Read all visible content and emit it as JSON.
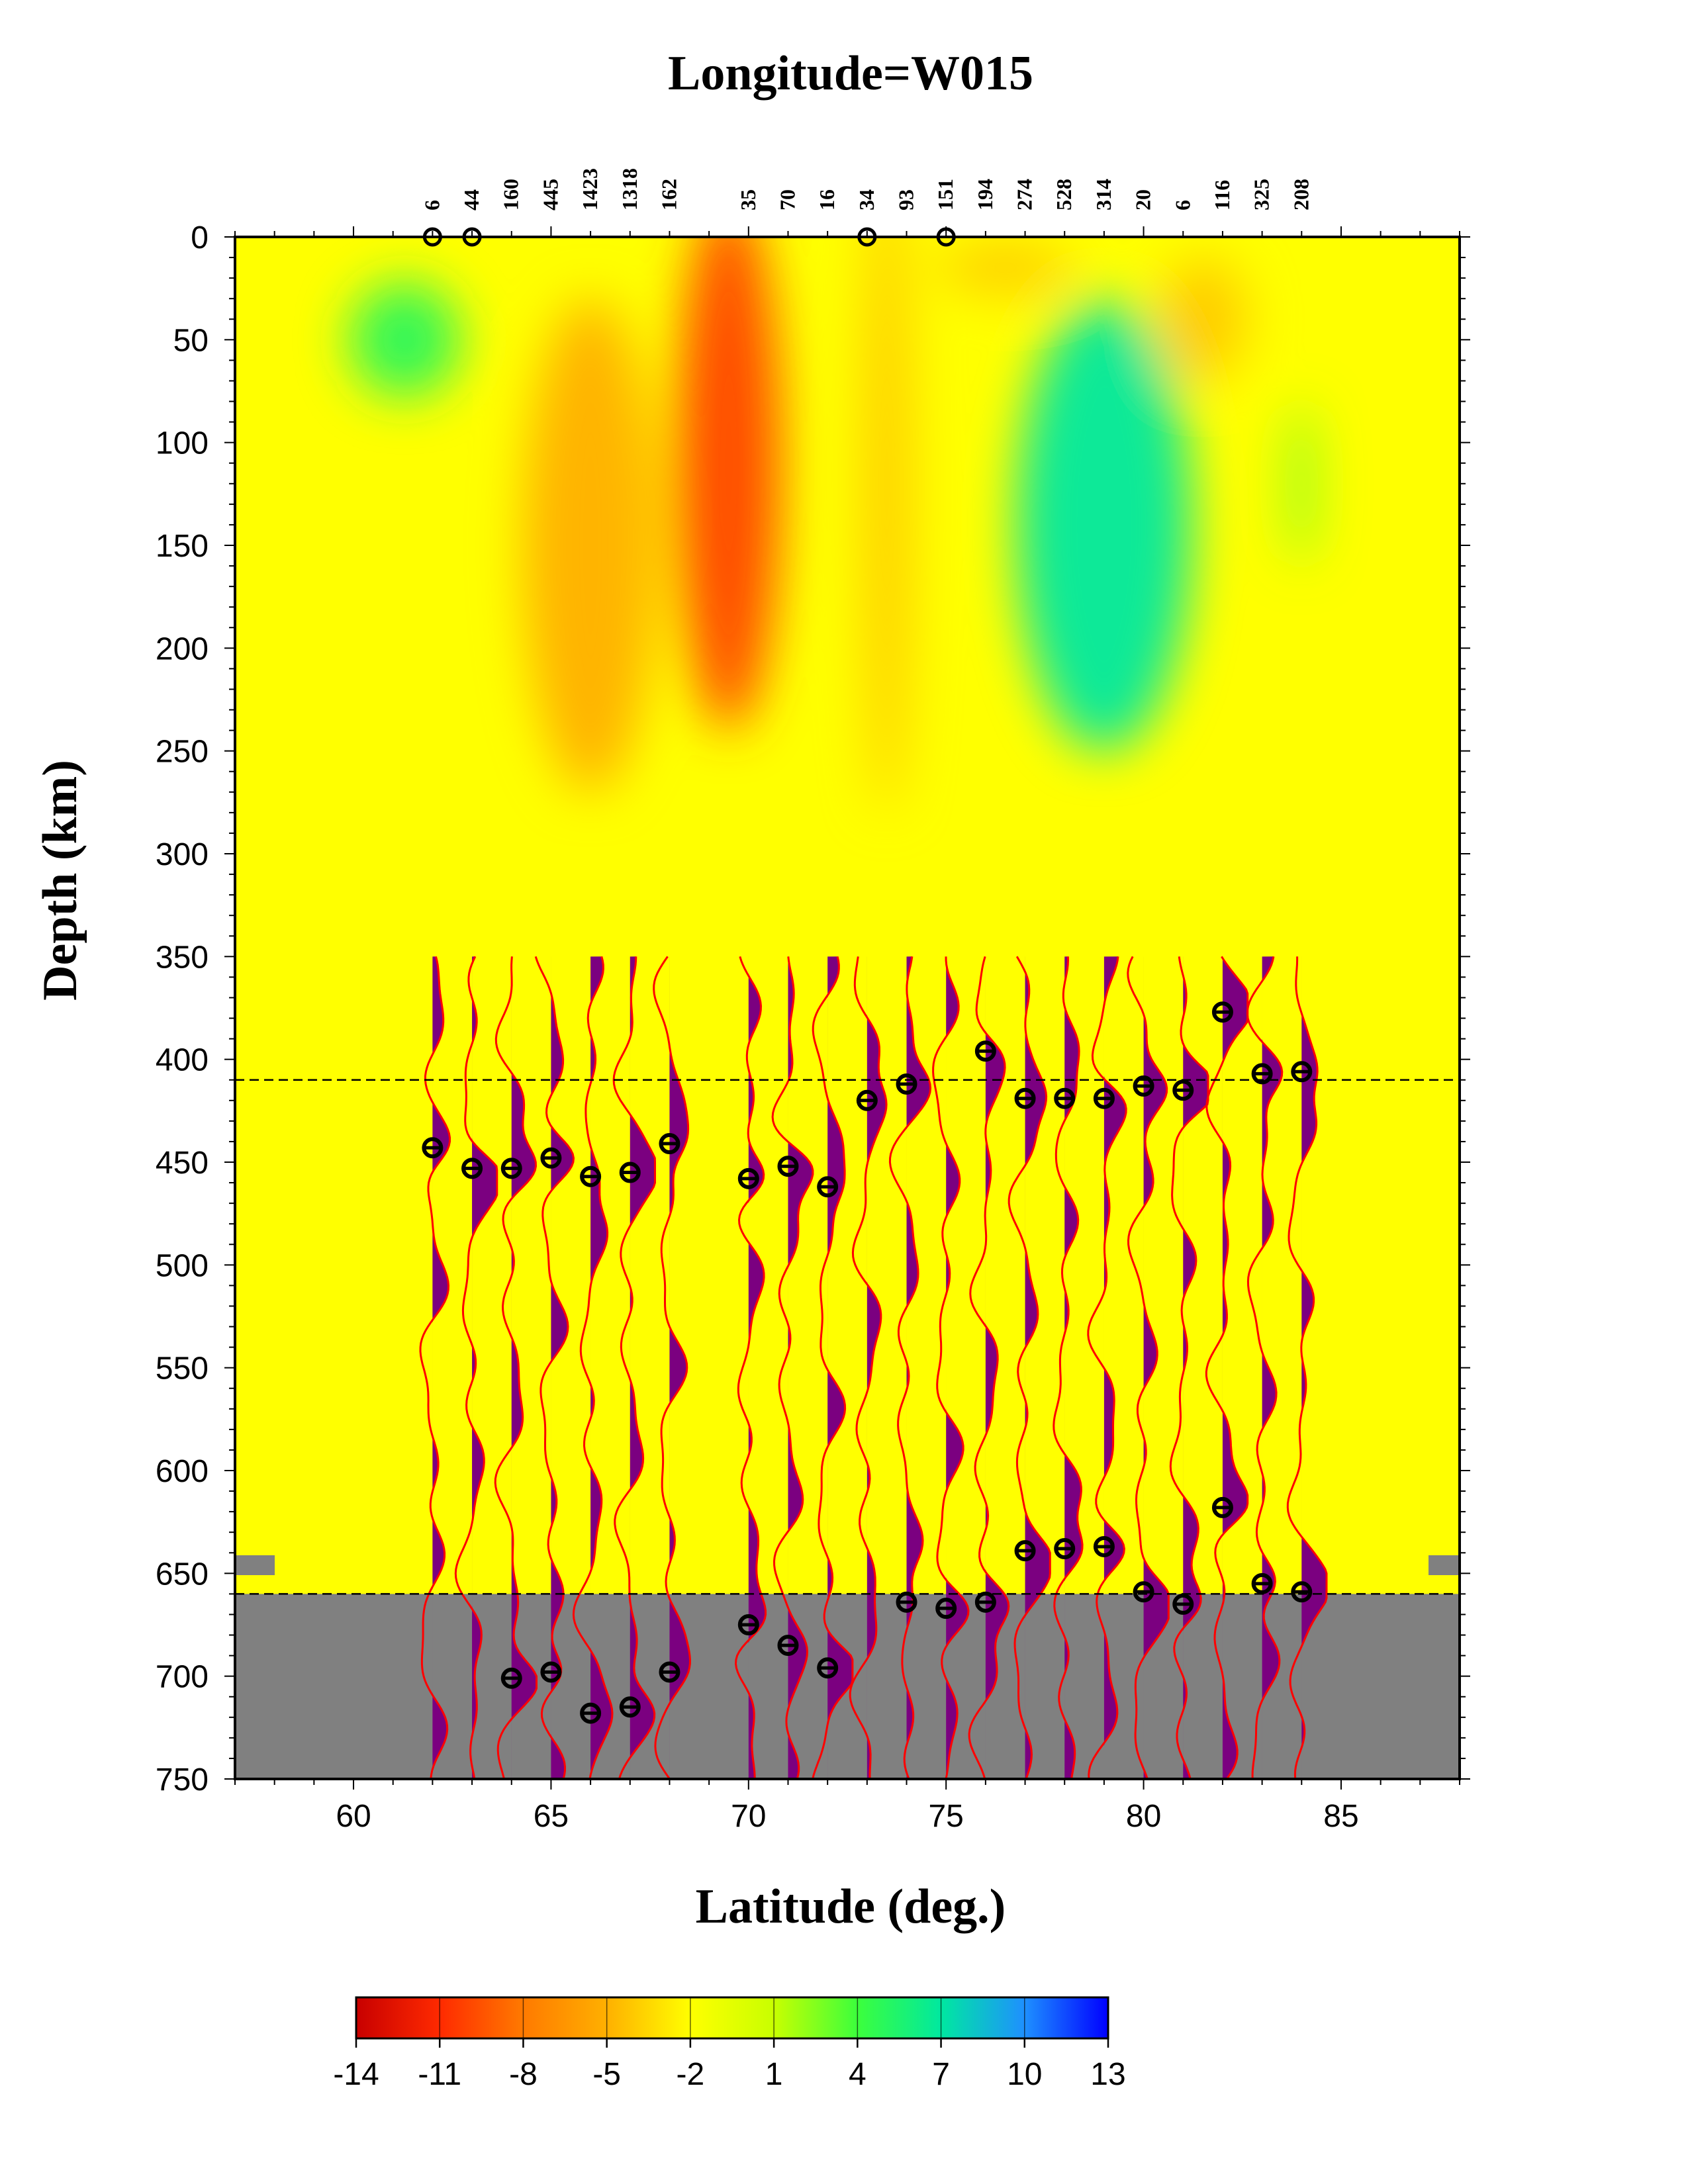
{
  "chart_data": {
    "type": "heatmap",
    "title": "Longitude=W015",
    "xlabel": "Latitude (deg.)",
    "ylabel": "Depth (km)",
    "xlim": [
      57,
      88
    ],
    "ylim": [
      0,
      750
    ],
    "x_ticks": [
      60,
      65,
      70,
      75,
      80,
      85
    ],
    "y_ticks": [
      0,
      50,
      100,
      150,
      200,
      250,
      300,
      350,
      400,
      450,
      500,
      550,
      600,
      650,
      700,
      750
    ],
    "reference_lines": [
      410,
      660
    ],
    "colorbar": {
      "ticks": [
        -14,
        -11,
        -8,
        -5,
        -2,
        1,
        4,
        7,
        10,
        13
      ],
      "range": [
        -14,
        13
      ],
      "colors": [
        "#c80000",
        "#ff2a00",
        "#ff7a00",
        "#ffb000",
        "#ffff00",
        "#c8ff00",
        "#3cff3c",
        "#00e8a0",
        "#1e90ff",
        "#0000ff"
      ]
    },
    "velocity_anomalies": [
      {
        "lat": 61.3,
        "depth": 50,
        "value": 5
      },
      {
        "lat": 66.0,
        "depth": 150,
        "value": -5
      },
      {
        "lat": 69.5,
        "depth": 110,
        "value": -10
      },
      {
        "lat": 73.5,
        "depth": 120,
        "value": -4
      },
      {
        "lat": 79.0,
        "depth": 140,
        "value": 7
      },
      {
        "lat": 76.5,
        "depth": 15,
        "value": -4
      },
      {
        "lat": 81.5,
        "depth": 40,
        "value": -4
      },
      {
        "lat": 84.0,
        "depth": 120,
        "value": 3
      }
    ],
    "traces": [
      {
        "lat": 62,
        "count": "6",
        "d410": 443,
        "d660": null
      },
      {
        "lat": 63,
        "count": "44",
        "d410": 453,
        "d660": null
      },
      {
        "lat": 64,
        "count": "160",
        "d410": 453,
        "d660": 701
      },
      {
        "lat": 65,
        "count": "445",
        "d410": 448,
        "d660": 698
      },
      {
        "lat": 66,
        "count": "1423",
        "d410": 457,
        "d660": 718
      },
      {
        "lat": 67,
        "count": "1318",
        "d410": 455,
        "d660": 715
      },
      {
        "lat": 68,
        "count": "162",
        "d410": 441,
        "d660": 698
      },
      {
        "lat": 70,
        "count": "35",
        "d410": 458,
        "d660": 675
      },
      {
        "lat": 71,
        "count": "70",
        "d410": 452,
        "d660": 685
      },
      {
        "lat": 72,
        "count": "16",
        "d410": 462,
        "d660": 696
      },
      {
        "lat": 73,
        "count": "34",
        "d410": 420,
        "d660": null
      },
      {
        "lat": 74,
        "count": "93",
        "d410": 412,
        "d660": 664
      },
      {
        "lat": 75,
        "count": "151",
        "d410": null,
        "d660": 667
      },
      {
        "lat": 76,
        "count": "194",
        "d410": 396,
        "d660": 664
      },
      {
        "lat": 77,
        "count": "274",
        "d410": 419,
        "d660": 639
      },
      {
        "lat": 78,
        "count": "528",
        "d410": 419,
        "d660": 638
      },
      {
        "lat": 79,
        "count": "314",
        "d410": 419,
        "d660": 637
      },
      {
        "lat": 80,
        "count": "20",
        "d410": 413,
        "d660": 659
      },
      {
        "lat": 81,
        "count": "6",
        "d410": 415,
        "d660": 665
      },
      {
        "lat": 82,
        "count": "116",
        "d410": 377,
        "d660": 618
      },
      {
        "lat": 83,
        "count": "325",
        "d410": 407,
        "d660": 655
      },
      {
        "lat": 84,
        "count": "208",
        "d410": 406,
        "d660": 659
      }
    ],
    "surface_markers": [
      62,
      63,
      73,
      75
    ]
  }
}
